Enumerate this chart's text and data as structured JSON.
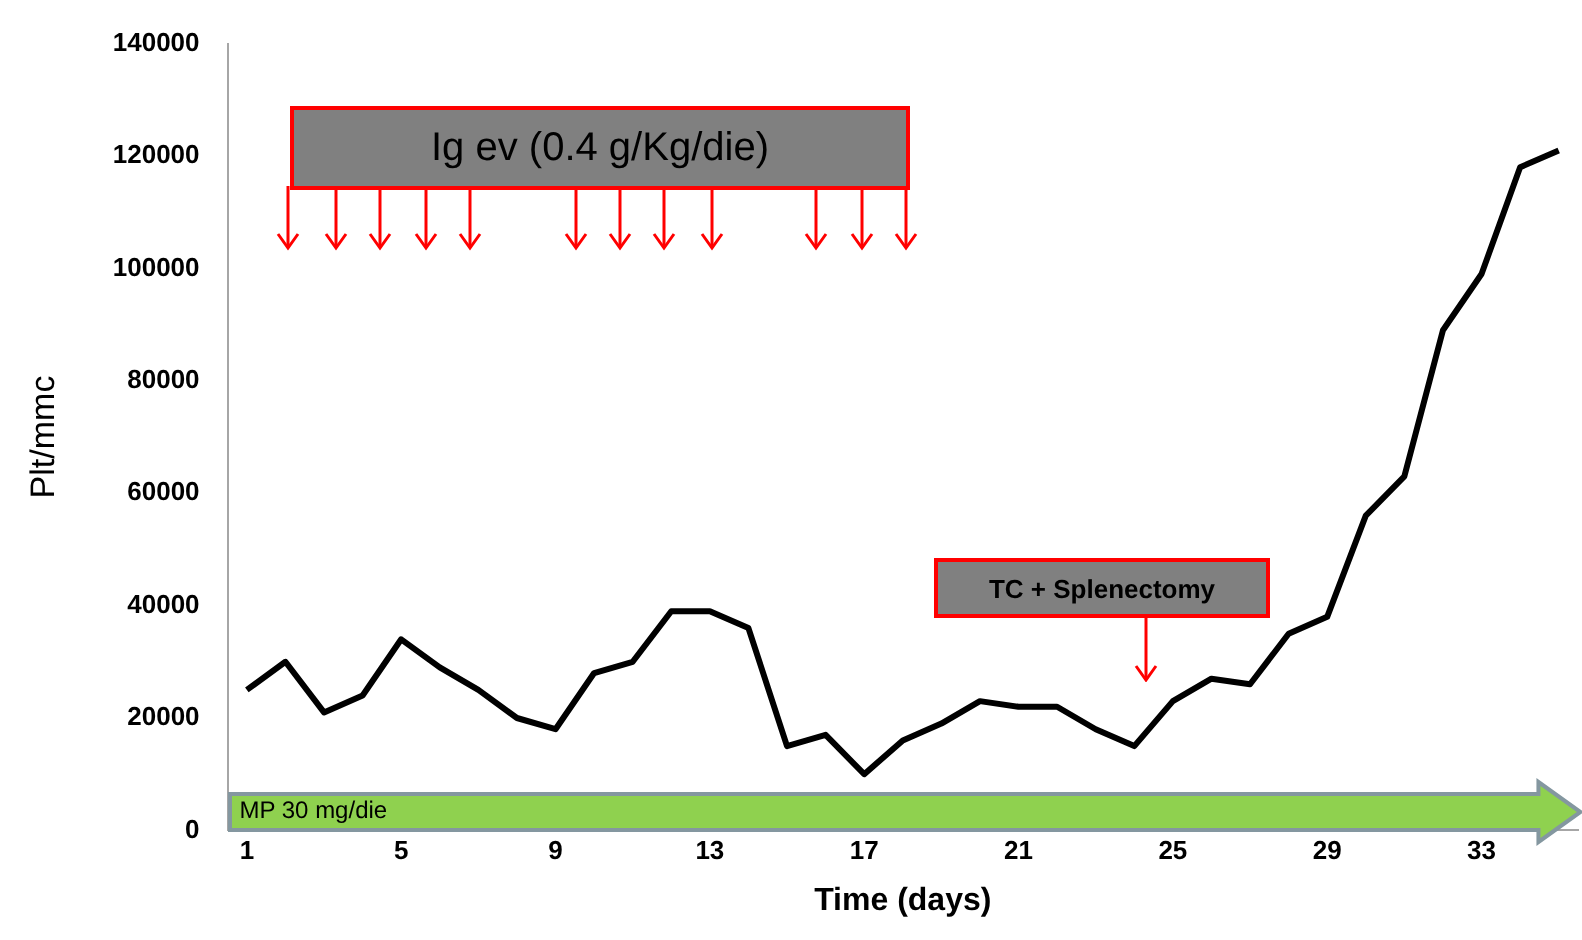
{
  "chart_data": {
    "type": "line",
    "xlabel": "Time (days)",
    "ylabel": "Plt/mmc",
    "x": [
      1,
      2,
      3,
      4,
      5,
      6,
      7,
      8,
      9,
      10,
      11,
      12,
      13,
      14,
      15,
      16,
      17,
      18,
      19,
      20,
      21,
      22,
      23,
      24,
      25,
      26,
      27,
      28,
      29,
      30,
      31,
      32,
      33,
      34,
      35
    ],
    "series": [
      {
        "color": "#000000",
        "values": [
          25000,
          30000,
          21000,
          24000,
          34000,
          29000,
          25000,
          20000,
          18000,
          28000,
          30000,
          39000,
          39000,
          36000,
          15000,
          17000,
          10000,
          16000,
          19000,
          23000,
          22000,
          22000,
          18000,
          15000,
          23000,
          27000,
          26000,
          35000,
          38000,
          56000,
          63000,
          89000,
          99000,
          118000,
          121000
        ]
      }
    ],
    "xlim": [
      0.5,
      35.5
    ],
    "xticks": [
      1,
      5,
      9,
      13,
      17,
      21,
      25,
      29,
      33
    ],
    "ylim": [
      0,
      140000
    ],
    "yticks": [
      0,
      20000,
      40000,
      60000,
      80000,
      100000,
      120000,
      140000
    ],
    "grid": false,
    "legend": false,
    "marker": "none",
    "line_style": "solid",
    "annotations": [
      "Ig ev (0.4 g/Kg/die)",
      "TC + Splenectomy",
      "MP 30 mg/die"
    ]
  }
}
